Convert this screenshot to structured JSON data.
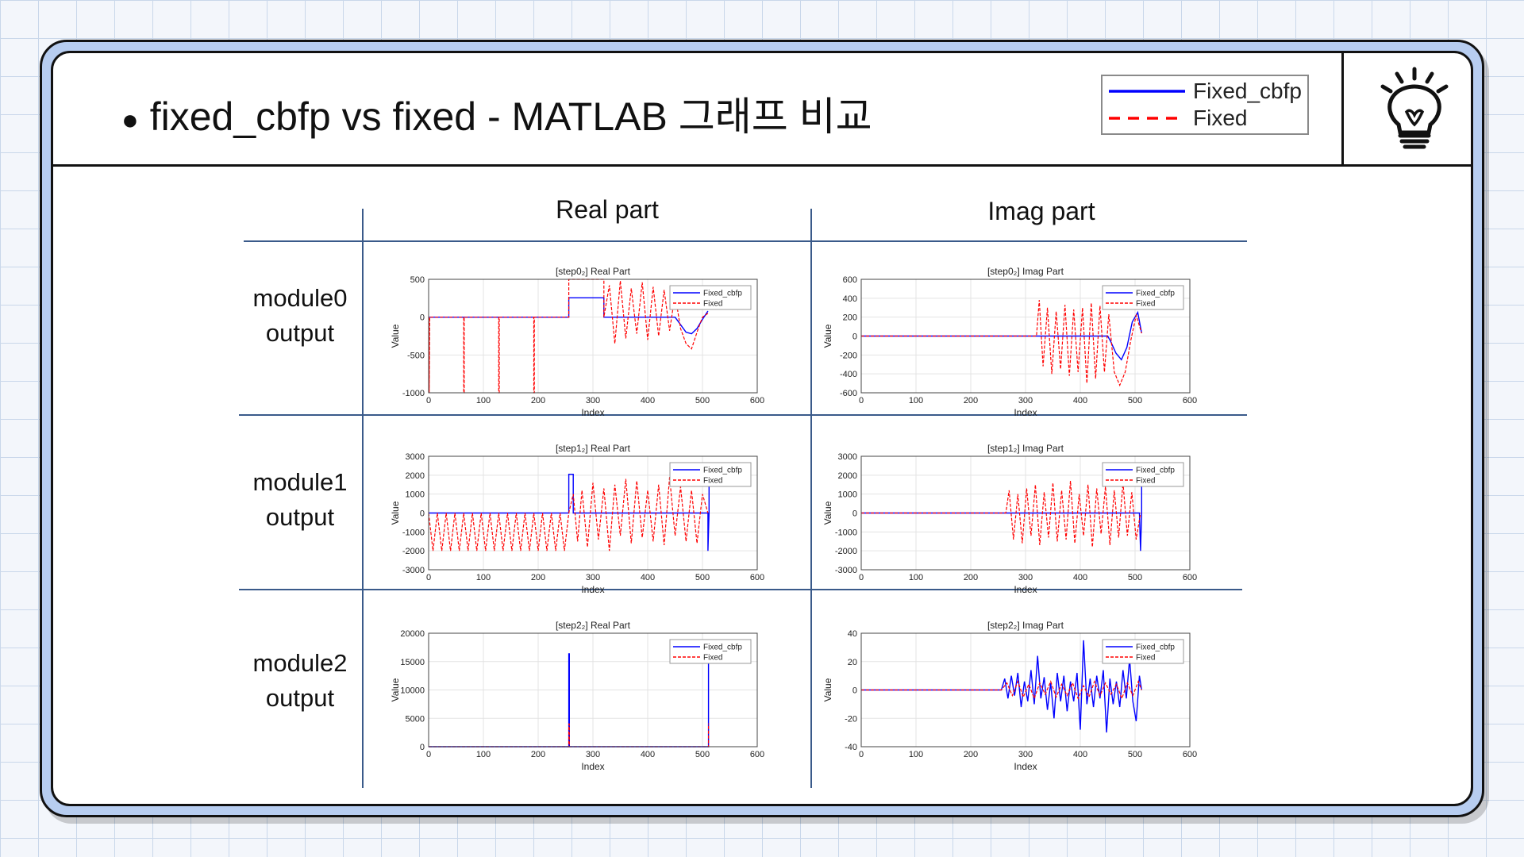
{
  "slide": {
    "title": "fixed_cbfp  vs  fixed  -  MATLAB 그래프 비교",
    "bullet": "●"
  },
  "header_legend": {
    "items": [
      {
        "label": "Fixed_cbfp",
        "color": "#0000ff",
        "style": "solid"
      },
      {
        "label": "Fixed",
        "color": "#ff0000",
        "style": "dashed"
      }
    ]
  },
  "icon": "lightbulb-icon",
  "table": {
    "column_headers": [
      "Real part",
      "Imag part"
    ],
    "row_labels": [
      [
        "module0",
        "output"
      ],
      [
        "module1",
        "output"
      ],
      [
        "module2",
        "output"
      ]
    ]
  },
  "colors": {
    "fixed_cbfp": "#0000ff",
    "fixed": "#ff0000",
    "table_lines": "#3a5a8a"
  },
  "chart_data": [
    {
      "type": "line",
      "title": "[step0₂]  Real  Part",
      "xlabel": "Index",
      "ylabel": "Value",
      "xlim": [
        0,
        600
      ],
      "ylim": [
        -1000,
        500
      ],
      "xticks": [
        0,
        100,
        200,
        300,
        400,
        500,
        600
      ],
      "yticks": [
        -1000,
        -500,
        0,
        500
      ],
      "grid": true,
      "legend_position": "top-right",
      "series": [
        {
          "name": "Fixed_cbfp",
          "color": "#0000ff",
          "dash": "solid",
          "x": [
            0,
            256,
            256,
            320,
            320,
            450,
            450,
            460,
            470,
            480,
            490,
            500,
            510
          ],
          "y": [
            0,
            0,
            256,
            256,
            0,
            0,
            0,
            -100,
            -200,
            -220,
            -150,
            -30,
            80
          ]
        },
        {
          "name": "Fixed",
          "color": "#ff0000",
          "dash": "dashed",
          "x": [
            0,
            1,
            1,
            2,
            64,
            64,
            65,
            65,
            128,
            128,
            129,
            129,
            192,
            192,
            193,
            193,
            256,
            256,
            320,
            320,
            330,
            340,
            350,
            360,
            370,
            380,
            390,
            400,
            410,
            420,
            430,
            440,
            450,
            460,
            470,
            480,
            490,
            500,
            510
          ],
          "y": [
            0,
            0,
            -1000,
            0,
            0,
            -1000,
            -1000,
            0,
            0,
            -1000,
            -1000,
            0,
            0,
            -1000,
            -1000,
            0,
            0,
            500,
            500,
            0,
            420,
            -350,
            480,
            -280,
            380,
            -220,
            460,
            -300,
            400,
            -250,
            360,
            -180,
            300,
            -150,
            -350,
            -420,
            -200,
            0,
            50
          ]
        }
      ]
    },
    {
      "type": "line",
      "title": "[step0₂]  Imag  Part",
      "xlabel": "Index",
      "ylabel": "Value",
      "xlim": [
        0,
        600
      ],
      "ylim": [
        -600,
        600
      ],
      "xticks": [
        0,
        100,
        200,
        300,
        400,
        500,
        600
      ],
      "yticks": [
        -600,
        -400,
        -200,
        0,
        200,
        400,
        600
      ],
      "grid": true,
      "legend_position": "top-right",
      "series": [
        {
          "name": "Fixed_cbfp",
          "color": "#0000ff",
          "dash": "solid",
          "x": [
            0,
            450,
            455,
            465,
            475,
            485,
            495,
            505,
            512
          ],
          "y": [
            0,
            0,
            -50,
            -180,
            -250,
            -120,
            150,
            250,
            30
          ]
        },
        {
          "name": "Fixed",
          "color": "#ff0000",
          "dash": "dashed",
          "x": [
            0,
            320,
            325,
            332,
            340,
            348,
            356,
            364,
            372,
            380,
            388,
            396,
            404,
            412,
            420,
            428,
            436,
            444,
            452,
            462,
            472,
            482,
            492,
            502,
            512
          ],
          "y": [
            0,
            0,
            380,
            -320,
            300,
            -400,
            260,
            -350,
            330,
            -420,
            280,
            -380,
            300,
            -500,
            350,
            -450,
            320,
            -380,
            230,
            -380,
            -520,
            -380,
            -50,
            220,
            30
          ]
        }
      ]
    },
    {
      "type": "line",
      "title": "[step1₂]  Real  Part",
      "xlabel": "Index",
      "ylabel": "Value",
      "xlim": [
        0,
        600
      ],
      "ylim": [
        -3000,
        3000
      ],
      "xticks": [
        0,
        100,
        200,
        300,
        400,
        500,
        600
      ],
      "yticks": [
        -3000,
        -2000,
        -1000,
        0,
        1000,
        2000,
        3000
      ],
      "grid": true,
      "legend_position": "top-right",
      "series": [
        {
          "name": "Fixed_cbfp",
          "color": "#0000ff",
          "dash": "solid",
          "x": [
            0,
            256,
            256,
            264,
            264,
            510,
            510,
            512,
            512
          ],
          "y": [
            0,
            0,
            2048,
            2048,
            0,
            0,
            -2000,
            0,
            1600
          ]
        },
        {
          "name": "Fixed",
          "color": "#ff0000",
          "dash": "dashed",
          "x": [
            0,
            8,
            16,
            24,
            32,
            40,
            48,
            56,
            64,
            72,
            80,
            88,
            96,
            104,
            112,
            120,
            128,
            136,
            144,
            152,
            160,
            168,
            176,
            184,
            192,
            200,
            208,
            216,
            224,
            232,
            240,
            248,
            256,
            264,
            272,
            280,
            290,
            300,
            310,
            320,
            330,
            340,
            350,
            360,
            370,
            380,
            390,
            400,
            410,
            420,
            430,
            440,
            450,
            460,
            470,
            480,
            490,
            500,
            510
          ],
          "y": [
            0,
            -2000,
            0,
            -2000,
            0,
            -2000,
            0,
            -2000,
            0,
            -2000,
            0,
            -2000,
            0,
            -2000,
            0,
            -2000,
            0,
            -2000,
            0,
            -2000,
            0,
            -2000,
            0,
            -2000,
            0,
            -2000,
            0,
            -2000,
            0,
            -2000,
            0,
            -2000,
            0,
            1000,
            -1500,
            1200,
            -1800,
            1600,
            -1400,
            1300,
            -2000,
            1500,
            -1200,
            1800,
            -1600,
            1700,
            -1300,
            1200,
            -1500,
            1500,
            -1700,
            1900,
            -1200,
            1400,
            -1500,
            1200,
            -1600,
            1000,
            0
          ]
        }
      ]
    },
    {
      "type": "line",
      "title": "[step1₂]  Imag  Part",
      "xlabel": "Index",
      "ylabel": "Value",
      "xlim": [
        0,
        600
      ],
      "ylim": [
        -3000,
        3000
      ],
      "xticks": [
        0,
        100,
        200,
        300,
        400,
        500,
        600
      ],
      "yticks": [
        -3000,
        -2000,
        -1000,
        0,
        1000,
        2000,
        3000
      ],
      "grid": true,
      "legend_position": "top-right",
      "series": [
        {
          "name": "Fixed_cbfp",
          "color": "#0000ff",
          "dash": "solid",
          "x": [
            0,
            508,
            510,
            512,
            512
          ],
          "y": [
            0,
            0,
            -2000,
            0,
            1400
          ]
        },
        {
          "name": "Fixed",
          "color": "#ff0000",
          "dash": "dashed",
          "x": [
            0,
            264,
            270,
            278,
            286,
            294,
            302,
            310,
            318,
            326,
            334,
            342,
            350,
            358,
            366,
            374,
            382,
            390,
            398,
            406,
            414,
            422,
            430,
            438,
            446,
            454,
            462,
            470,
            478,
            486,
            494,
            502,
            510
          ],
          "y": [
            0,
            0,
            1200,
            -1400,
            1000,
            -1600,
            1300,
            -1200,
            1500,
            -1700,
            1100,
            -1300,
            1600,
            -1500,
            1200,
            -1400,
            1700,
            -1600,
            1000,
            -1200,
            1500,
            -1800,
            1300,
            -1100,
            1400,
            -1700,
            1200,
            -1300,
            1600,
            -1200,
            1100,
            -1400,
            0
          ]
        }
      ]
    },
    {
      "type": "line",
      "title": "[step2₂]  Real  Part",
      "xlabel": "Index",
      "ylabel": "Value",
      "xlim": [
        0,
        600
      ],
      "ylim": [
        0,
        20000
      ],
      "xticks": [
        0,
        100,
        200,
        300,
        400,
        500,
        600
      ],
      "yticks": [
        0,
        5000,
        10000,
        15000,
        20000
      ],
      "grid": true,
      "legend_position": "top-right",
      "series": [
        {
          "name": "Fixed_cbfp",
          "color": "#0000ff",
          "dash": "solid",
          "x": [
            0,
            256,
            256,
            257,
            257,
            511,
            511,
            512
          ],
          "y": [
            0,
            0,
            16384,
            16384,
            0,
            0,
            16384,
            16384
          ]
        },
        {
          "name": "Fixed",
          "color": "#ff0000",
          "dash": "dashed",
          "x": [
            0,
            256,
            256,
            257,
            257,
            511,
            511,
            512
          ],
          "y": [
            0,
            0,
            4000,
            4000,
            0,
            0,
            4000,
            4000
          ]
        }
      ]
    },
    {
      "type": "line",
      "title": "[step2₂]  Imag  Part",
      "xlabel": "Index",
      "ylabel": "Value",
      "xlim": [
        0,
        600
      ],
      "ylim": [
        -40,
        40
      ],
      "xticks": [
        0,
        100,
        200,
        300,
        400,
        500,
        600
      ],
      "yticks": [
        -40,
        -20,
        0,
        20,
        40
      ],
      "grid": true,
      "legend_position": "top-right",
      "series": [
        {
          "name": "Fixed_cbfp",
          "color": "#0000ff",
          "dash": "solid",
          "x": [
            0,
            256,
            262,
            268,
            274,
            280,
            286,
            292,
            298,
            304,
            310,
            316,
            322,
            328,
            334,
            340,
            346,
            352,
            358,
            364,
            370,
            376,
            382,
            388,
            394,
            400,
            406,
            412,
            418,
            424,
            430,
            436,
            442,
            448,
            454,
            460,
            466,
            472,
            478,
            484,
            490,
            496,
            502,
            508,
            512
          ],
          "y": [
            0,
            0,
            8,
            -6,
            10,
            -4,
            12,
            -12,
            6,
            -8,
            14,
            -10,
            24,
            -6,
            9,
            -14,
            5,
            -20,
            12,
            -8,
            10,
            -15,
            6,
            -8,
            12,
            -28,
            35,
            -10,
            8,
            -12,
            10,
            -6,
            14,
            -30,
            8,
            -10,
            6,
            -12,
            14,
            -6,
            22,
            -8,
            -22,
            10,
            0
          ]
        },
        {
          "name": "Fixed",
          "color": "#ff0000",
          "dash": "dashed",
          "x": [
            0,
            256,
            266,
            276,
            286,
            296,
            306,
            316,
            326,
            336,
            346,
            356,
            366,
            376,
            386,
            396,
            406,
            416,
            426,
            436,
            446,
            456,
            466,
            476,
            486,
            496,
            506,
            512
          ],
          "y": [
            0,
            0,
            5,
            -4,
            6,
            -5,
            4,
            -6,
            5,
            -3,
            6,
            -5,
            4,
            -4,
            5,
            -6,
            3,
            -5,
            6,
            -4,
            5,
            -3,
            4,
            -6,
            5,
            -4,
            6,
            0
          ]
        }
      ]
    }
  ]
}
